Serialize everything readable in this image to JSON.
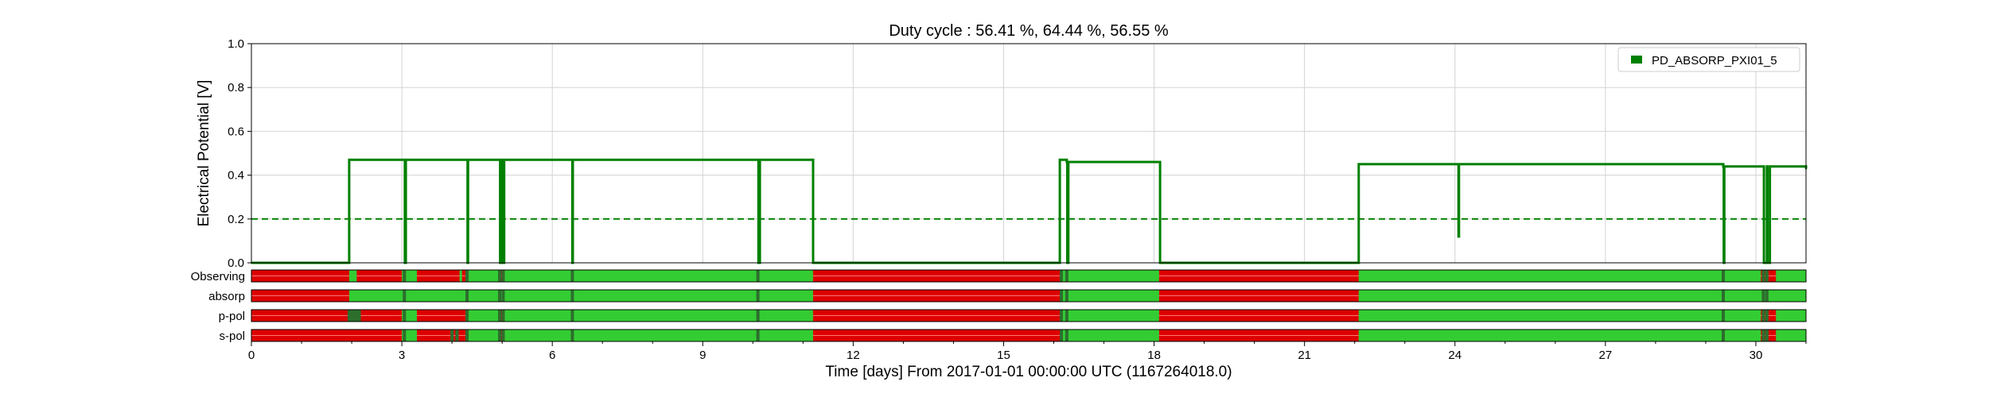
{
  "chart_data": {
    "type": "line",
    "title": "Duty cycle : 56.41 %, 64.44 %, 56.55 %",
    "xlabel": "Time [days] From 2017-01-01 00:00:00 UTC (1167264018.0)",
    "ylabel": "Electrical Potential [V]",
    "xlim": [
      0,
      31
    ],
    "ylim": [
      0,
      1.0
    ],
    "x_ticks": [
      0,
      3,
      6,
      9,
      12,
      15,
      18,
      21,
      24,
      27,
      30
    ],
    "y_ticks": [
      "0.0",
      "0.2",
      "0.4",
      "0.6",
      "0.8",
      "1.0"
    ],
    "grid": true,
    "legend_position": "top-right",
    "threshold": 0.2,
    "series": [
      {
        "name": "PD_ABSORP_PXI01_5",
        "color": "#008000",
        "points": [
          [
            0,
            0.0
          ],
          [
            1.93,
            0.0
          ],
          [
            1.95,
            0.47
          ],
          [
            3.05,
            0.47
          ],
          [
            3.06,
            0.0
          ],
          [
            3.08,
            0.47
          ],
          [
            4.3,
            0.47
          ],
          [
            4.31,
            0.0
          ],
          [
            4.32,
            0.47
          ],
          [
            4.95,
            0.47
          ],
          [
            4.96,
            0.0
          ],
          [
            5.0,
            0.47
          ],
          [
            5.01,
            0.0
          ],
          [
            5.04,
            0.47
          ],
          [
            6.39,
            0.47
          ],
          [
            6.4,
            0.0
          ],
          [
            6.41,
            0.47
          ],
          [
            10.1,
            0.47
          ],
          [
            10.11,
            0.0
          ],
          [
            10.14,
            0.47
          ],
          [
            11.18,
            0.47
          ],
          [
            11.2,
            0.0
          ],
          [
            16.1,
            0.0
          ],
          [
            16.12,
            0.47
          ],
          [
            16.26,
            0.46
          ],
          [
            16.27,
            0.0
          ],
          [
            16.29,
            0.46
          ],
          [
            18.1,
            0.46
          ],
          [
            18.12,
            0.0
          ],
          [
            22.06,
            0.0
          ],
          [
            22.08,
            0.45
          ],
          [
            24.06,
            0.45
          ],
          [
            24.07,
            0.12
          ],
          [
            24.08,
            0.45
          ],
          [
            29.35,
            0.44
          ],
          [
            29.36,
            0.0
          ],
          [
            29.37,
            0.44
          ],
          [
            30.15,
            0.44
          ],
          [
            30.16,
            0.0
          ],
          [
            30.22,
            0.44
          ],
          [
            30.23,
            0.0
          ],
          [
            30.28,
            0.44
          ],
          [
            31,
            0.43
          ]
        ]
      }
    ],
    "state_segments": {
      "colors": {
        "active": "#33cc33",
        "inactive": "#dd0000",
        "flag": "#2d6e2d"
      },
      "rows": [
        {
          "label": "Observing",
          "active": [
            [
              1.95,
              2.1
            ],
            [
              3.0,
              3.3
            ],
            [
              4.15,
              4.2
            ],
            [
              4.3,
              4.95
            ],
            [
              5.05,
              11.2
            ],
            [
              16.12,
              18.1
            ],
            [
              22.08,
              30.1
            ],
            [
              30.4,
              31
            ]
          ],
          "flags": [
            3.05,
            4.3,
            4.95,
            5.02,
            6.4,
            10.1,
            16.15,
            16.26,
            29.35,
            30.15,
            30.22
          ]
        },
        {
          "label": "absorp",
          "active": [
            [
              1.95,
              11.2
            ],
            [
              16.12,
              18.1
            ],
            [
              22.08,
              31
            ]
          ],
          "flags": [
            3.05,
            4.3,
            4.95,
            5.02,
            6.4,
            10.1,
            16.15,
            16.26,
            29.35,
            30.15,
            30.22
          ]
        },
        {
          "label": "p-pol",
          "active": [
            [
              3.0,
              3.3
            ],
            [
              4.3,
              4.95
            ],
            [
              5.05,
              11.2
            ],
            [
              16.12,
              18.1
            ],
            [
              22.08,
              30.1
            ],
            [
              30.4,
              31
            ]
          ],
          "flags": [
            1.95,
            2.0,
            2.05,
            2.1,
            2.15,
            3.05,
            4.3,
            4.95,
            5.02,
            6.4,
            10.1,
            16.15,
            16.26,
            29.35,
            30.15,
            30.22
          ]
        },
        {
          "label": "s-pol",
          "active": [
            [
              3.0,
              3.3
            ],
            [
              4.3,
              4.95
            ],
            [
              5.05,
              11.2
            ],
            [
              16.12,
              18.1
            ],
            [
              22.08,
              30.1
            ],
            [
              30.4,
              31
            ]
          ],
          "flags": [
            3.05,
            4.0,
            4.1,
            4.3,
            4.95,
            5.02,
            6.4,
            10.1,
            16.15,
            16.26,
            29.35,
            30.15,
            30.22
          ]
        }
      ]
    }
  }
}
